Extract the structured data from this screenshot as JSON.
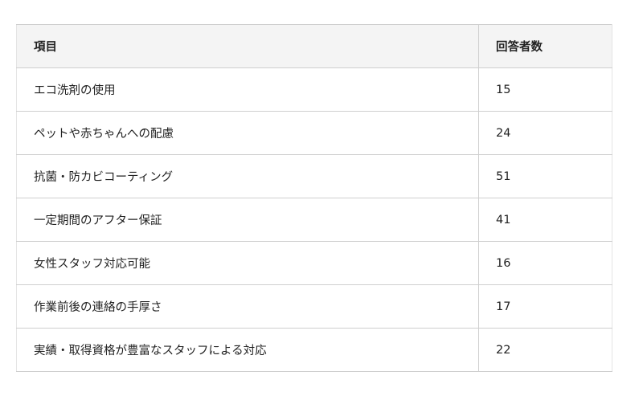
{
  "table": {
    "headers": [
      "項目",
      "回答者数"
    ],
    "rows": [
      {
        "item": "エコ洗剤の使用",
        "count": "15"
      },
      {
        "item": "ペットや赤ちゃんへの配慮",
        "count": "24"
      },
      {
        "item": "抗菌・防カビコーティング",
        "count": "51"
      },
      {
        "item": "一定期間のアフター保証",
        "count": "41"
      },
      {
        "item": "女性スタッフ対応可能",
        "count": "16"
      },
      {
        "item": "作業前後の連絡の手厚さ",
        "count": "17"
      },
      {
        "item": "実績・取得資格が豊富なスタッフによる対応",
        "count": "22"
      }
    ]
  }
}
